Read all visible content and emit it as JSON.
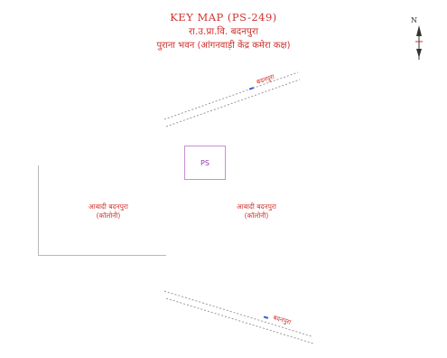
{
  "header": {
    "title": "KEY MAP (PS-249)",
    "line1": "रा.उ.प्रा.वि. बदनपुरा",
    "line2": "पुराना भवन (आंगनवाड़ी केंद्र कमेरा कक्ष)"
  },
  "north": {
    "label": "N"
  },
  "polling_station": {
    "label": "PS"
  },
  "areas": [
    {
      "line1": "आबादी बदनपुरा",
      "line2": "(कॉलोनी)"
    },
    {
      "line1": "आबादी बदनपुरा",
      "line2": "(कॉलोनी)"
    }
  ],
  "roads": [
    {
      "label": "बदनपुरा"
    },
    {
      "label": "बदनपुरा"
    }
  ],
  "colors": {
    "text": "#d0312d",
    "ps_border": "#c88fd2",
    "road": "#9a9a9a",
    "road_marker": "#3a5bd9"
  }
}
